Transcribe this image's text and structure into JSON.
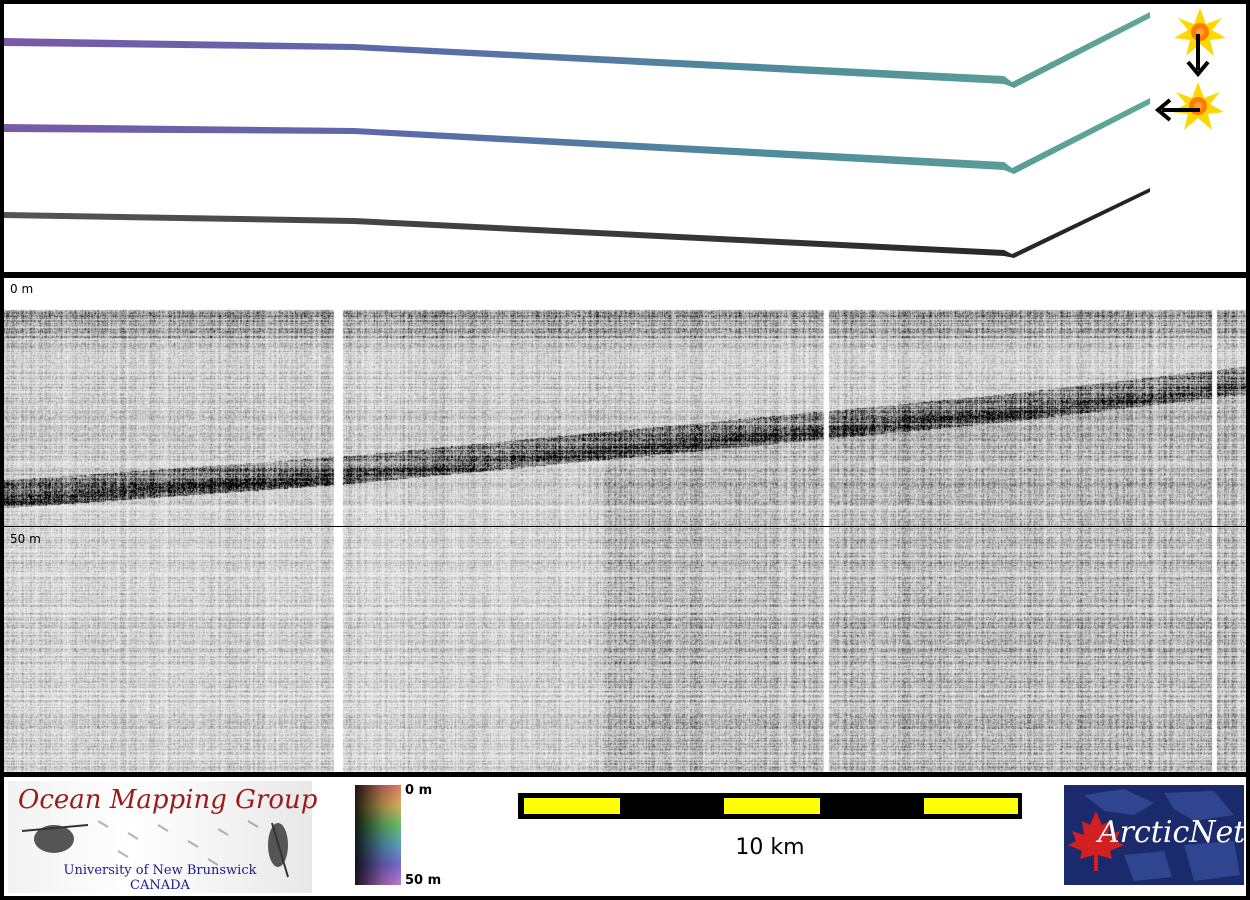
{
  "profile": {
    "depth_top_label": "0 m",
    "depth_mid_label": "50 m"
  },
  "legend": {
    "omg_title": "Ocean Mapping Group",
    "omg_subtitle_1": "University of New Brunswick",
    "omg_subtitle_2": "CANADA",
    "colorbar_top_label": "0 m",
    "colorbar_bottom_label": "50 m",
    "scale_label": "10 km",
    "arcticnet_logo_text": "ArcticNet"
  },
  "colors": {
    "scale_bar_yellow": "#ffff00",
    "scale_bar_black": "#000000",
    "omg_title_red": "#9b1b1b",
    "omg_subtitle_blue": "#1a1a8c",
    "arcticnet_bg": "#1b2a6b",
    "maple_red": "#d21f1f",
    "sun_yellow": "#ffd700",
    "sun_orange": "#ff7a00"
  },
  "icons": [
    "sun-illumination-icon",
    "arrow-down-icon",
    "arrow-left-icon",
    "maple-leaf-icon"
  ]
}
